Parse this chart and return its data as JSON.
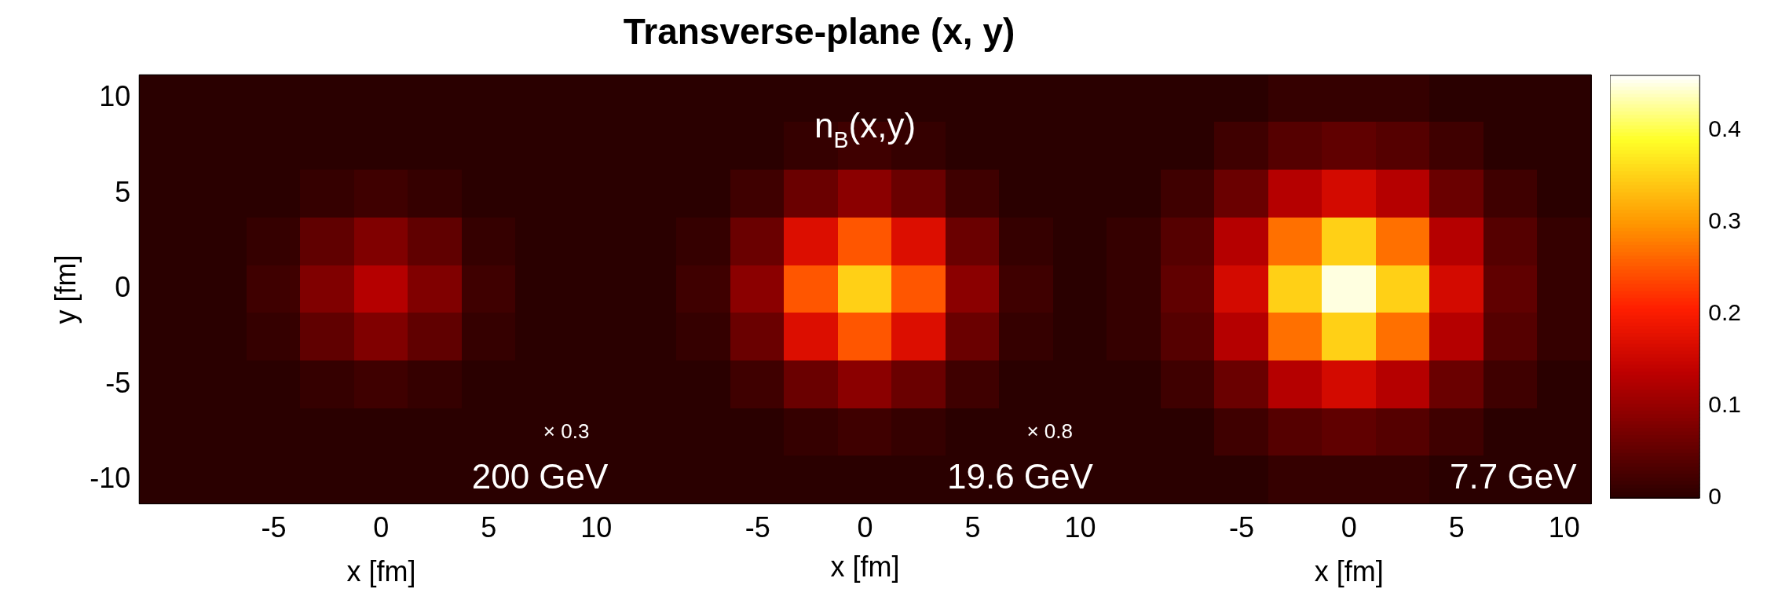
{
  "chart_data": {
    "type": "heatmap",
    "title": "Transverse-plane (x, y)",
    "xlabel": "x [fm]",
    "ylabel": "y [fm]",
    "annotations": [
      "× 0.3",
      "200 GeV",
      "n$_{B}$(x,y)",
      "× 0.8",
      "19.6 GeV",
      "7.7 GeV",
      "x [fm]",
      "x [fm]"
    ],
    "categories": [
      null,
      null,
      "-5",
      null,
      "0",
      null,
      "5",
      null,
      "10",
      null,
      null,
      "-5",
      null,
      "0",
      null,
      "5",
      null,
      "10",
      null,
      null,
      "-5",
      null,
      "0",
      null,
      "5",
      null,
      "10"
    ],
    "y_categories": [
      "10",
      null,
      "5",
      null,
      "0",
      null,
      "-5",
      null,
      "-10"
    ],
    "cells": [
      [
        0,
        0,
        0,
        0,
        0,
        0,
        0,
        0,
        0,
        0,
        0,
        0,
        0,
        0,
        0,
        0,
        0,
        0,
        0,
        0,
        0,
        0.01,
        0.01,
        0.01,
        0,
        0,
        0
      ],
      [
        0,
        0,
        0,
        0,
        0,
        0,
        0,
        0,
        0,
        0,
        0,
        0,
        0.01,
        0.02,
        0.01,
        0,
        0,
        0,
        0,
        0,
        0.02,
        0.04,
        0.05,
        0.04,
        0.02,
        0,
        0
      ],
      [
        0,
        0,
        0,
        0.01,
        0.02,
        0.01,
        0,
        0,
        0,
        0,
        0,
        0.02,
        0.06,
        0.09,
        0.06,
        0.02,
        0,
        0,
        0,
        0.02,
        0.06,
        0.13,
        0.16,
        0.13,
        0.06,
        0.02,
        0
      ],
      [
        0,
        0,
        0.01,
        0.05,
        0.08,
        0.05,
        0.01,
        0,
        0,
        0,
        0.01,
        0.06,
        0.17,
        0.25,
        0.17,
        0.06,
        0.01,
        0,
        0.01,
        0.04,
        0.13,
        0.27,
        0.35,
        0.27,
        0.13,
        0.04,
        0.01
      ],
      [
        0,
        0,
        0.02,
        0.08,
        0.13,
        0.08,
        0.02,
        0,
        0,
        0,
        0.02,
        0.09,
        0.25,
        0.35,
        0.25,
        0.09,
        0.02,
        0,
        0.01,
        0.05,
        0.16,
        0.35,
        0.45,
        0.35,
        0.16,
        0.05,
        0.01
      ],
      [
        0,
        0,
        0.01,
        0.05,
        0.08,
        0.05,
        0.01,
        0,
        0,
        0,
        0.01,
        0.06,
        0.17,
        0.25,
        0.17,
        0.06,
        0.01,
        0,
        0.01,
        0.04,
        0.13,
        0.27,
        0.35,
        0.27,
        0.13,
        0.04,
        0.01
      ],
      [
        0,
        0,
        0,
        0.01,
        0.02,
        0.01,
        0,
        0,
        0,
        0,
        0,
        0.02,
        0.06,
        0.09,
        0.06,
        0.02,
        0,
        0,
        0,
        0.02,
        0.06,
        0.13,
        0.16,
        0.13,
        0.06,
        0.02,
        0
      ],
      [
        0,
        0,
        0,
        0,
        0,
        0,
        0,
        0,
        0,
        0,
        0,
        0,
        0.01,
        0.02,
        0.01,
        0,
        0,
        0,
        0,
        0,
        0.02,
        0.04,
        0.05,
        0.04,
        0.02,
        0,
        0
      ],
      [
        0,
        0,
        0,
        0,
        0,
        0,
        0,
        0,
        0,
        0,
        0,
        0,
        0,
        0,
        0,
        0,
        0,
        0,
        0,
        0,
        0,
        0.01,
        0.01,
        0.01,
        0,
        0,
        0
      ]
    ],
    "clim": [
      0,
      0.46
    ],
    "cticks": [
      0,
      0.1,
      0.2,
      0.3,
      0.4
    ]
  }
}
